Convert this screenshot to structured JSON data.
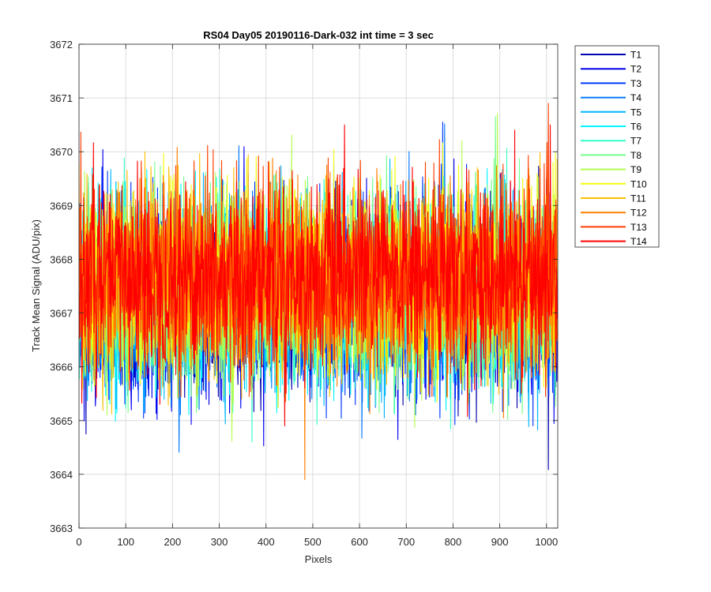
{
  "chart_data": {
    "type": "line",
    "title": "RS04 Day05 20190116-Dark-032 int time = 3 sec",
    "xlabel": "Pixels",
    "ylabel": "Track Mean Signal (ADU/pix)",
    "xlim": [
      0,
      1024
    ],
    "ylim": [
      3663,
      3672
    ],
    "xticks": [
      0,
      100,
      200,
      300,
      400,
      500,
      600,
      700,
      800,
      900,
      1000
    ],
    "yticks": [
      3663,
      3664,
      3665,
      3666,
      3667,
      3668,
      3669,
      3670,
      3671,
      3672
    ],
    "grid": true,
    "legend_position": "outside-top-right",
    "n_points": 1024,
    "series": [
      {
        "name": "T1",
        "color": "#0000ad",
        "mean": 3667.2,
        "min": 3663.9,
        "max": 3670.5
      },
      {
        "name": "T2",
        "color": "#0000f0",
        "mean": 3667.2,
        "min": 3664.0,
        "max": 3670.5
      },
      {
        "name": "T3",
        "color": "#0039ff",
        "mean": 3667.3,
        "min": 3664.2,
        "max": 3670.6
      },
      {
        "name": "T4",
        "color": "#0078ff",
        "mean": 3667.3,
        "min": 3664.3,
        "max": 3670.6
      },
      {
        "name": "T5",
        "color": "#00b7ff",
        "mean": 3667.3,
        "min": 3663.6,
        "max": 3670.6
      },
      {
        "name": "T6",
        "color": "#00f6ff",
        "mean": 3667.3,
        "min": 3664.4,
        "max": 3670.6
      },
      {
        "name": "T7",
        "color": "#36ffc9",
        "mean": 3667.4,
        "min": 3664.6,
        "max": 3670.7
      },
      {
        "name": "T8",
        "color": "#75ff8a",
        "mean": 3667.4,
        "min": 3664.7,
        "max": 3671.1
      },
      {
        "name": "T9",
        "color": "#b4ff4b",
        "mean": 3667.5,
        "min": 3664.3,
        "max": 3671.0
      },
      {
        "name": "T10",
        "color": "#f3ff0c",
        "mean": 3667.6,
        "min": 3664.6,
        "max": 3670.7
      },
      {
        "name": "T11",
        "color": "#ffbf00",
        "mean": 3667.6,
        "min": 3664.0,
        "max": 3670.9
      },
      {
        "name": "T12",
        "color": "#ff7f00",
        "mean": 3667.6,
        "min": 3663.9,
        "max": 3670.5
      },
      {
        "name": "T13",
        "color": "#ff3f00",
        "mean": 3667.7,
        "min": 3664.2,
        "max": 3670.9
      },
      {
        "name": "T14",
        "color": "#ff0000",
        "mean": 3667.7,
        "min": 3664.9,
        "max": 3670.5
      }
    ]
  }
}
